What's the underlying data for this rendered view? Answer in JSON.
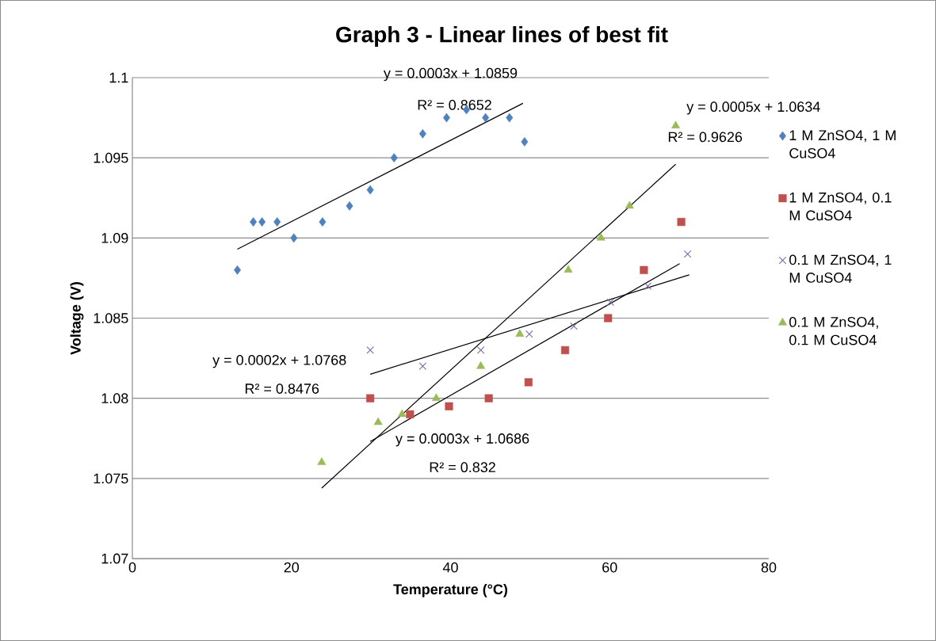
{
  "chart_data": {
    "type": "scatter",
    "title": "Graph 3 - Linear lines of best fit",
    "xlabel": "Temperature (°C)",
    "ylabel": "Voltage (V)",
    "xlim": [
      0,
      80
    ],
    "xticks": [
      0,
      20,
      40,
      60,
      80
    ],
    "ylim": [
      1.07,
      1.1
    ],
    "yticks": [
      1.07,
      1.075,
      1.08,
      1.085,
      1.09,
      1.095,
      1.1
    ],
    "grid": "y",
    "legend": "right",
    "series": [
      {
        "name": "1 M ZnSO4, 1 M CuSO4",
        "color": "#4f81bd",
        "marker": "diamond",
        "x": [
          13.2,
          15.2,
          16.3,
          18.2,
          20.3,
          23.9,
          27.3,
          29.9,
          32.9,
          36.5,
          39.5,
          42.0,
          44.4,
          47.4,
          49.3
        ],
        "values": [
          1.088,
          1.091,
          1.091,
          1.091,
          1.09,
          1.091,
          1.092,
          1.093,
          1.095,
          1.0965,
          1.0975,
          1.098,
          1.0975,
          1.0975,
          1.096
        ]
      },
      {
        "name": "1 M ZnSO4, 0.1 M CuSO4",
        "color": "#c0504d",
        "marker": "square",
        "x": [
          29.9,
          34.9,
          39.8,
          44.8,
          49.8,
          54.4,
          59.8,
          64.3,
          69.0
        ],
        "values": [
          1.08,
          1.079,
          1.0795,
          1.08,
          1.081,
          1.083,
          1.085,
          1.088,
          1.091
        ]
      },
      {
        "name": "0.1 M ZnSO4, 1 M CuSO4",
        "color": "#8064a2",
        "marker": "cross",
        "x": [
          29.9,
          36.5,
          43.8,
          49.9,
          55.5,
          60.1,
          64.8,
          69.8
        ],
        "values": [
          1.083,
          1.082,
          1.083,
          1.084,
          1.0845,
          1.086,
          1.087,
          1.089
        ]
      },
      {
        "name": "0.1 M ZnSO4, 0.1 M CuSO4",
        "color": "#9bbb59",
        "marker": "triangle",
        "x": [
          23.8,
          30.9,
          33.9,
          38.2,
          43.8,
          48.7,
          54.8,
          58.9,
          62.5,
          68.3
        ],
        "values": [
          1.076,
          1.0785,
          1.079,
          1.08,
          1.082,
          1.084,
          1.088,
          1.09,
          1.092,
          1.097
        ]
      },
      {
        "type": "line",
        "color": "#000000",
        "marker": "none",
        "x": [
          13.2,
          49.1
        ],
        "values": [
          1.0893,
          1.0984
        ]
      },
      {
        "type": "line",
        "color": "#000000",
        "marker": "none",
        "x": [
          29.9,
          68.8
        ],
        "values": [
          1.0773,
          1.0884
        ]
      },
      {
        "type": "line",
        "color": "#000000",
        "marker": "none",
        "x": [
          29.9,
          70.0
        ],
        "values": [
          1.0815,
          1.0877
        ]
      },
      {
        "type": "line",
        "color": "#000000",
        "marker": "none",
        "x": [
          23.8,
          68.3
        ],
        "values": [
          1.0744,
          1.0946
        ]
      }
    ],
    "annotations": [
      "y = 0.0003x + 1.0859",
      "R² = 0.8652",
      "y = 0.0005x + 1.0634",
      "R² = 0.9626",
      "y = 0.0002x + 1.0768",
      "R² = 0.8476",
      "y = 0.0003x + 1.0686",
      "R² = 0.832"
    ]
  }
}
